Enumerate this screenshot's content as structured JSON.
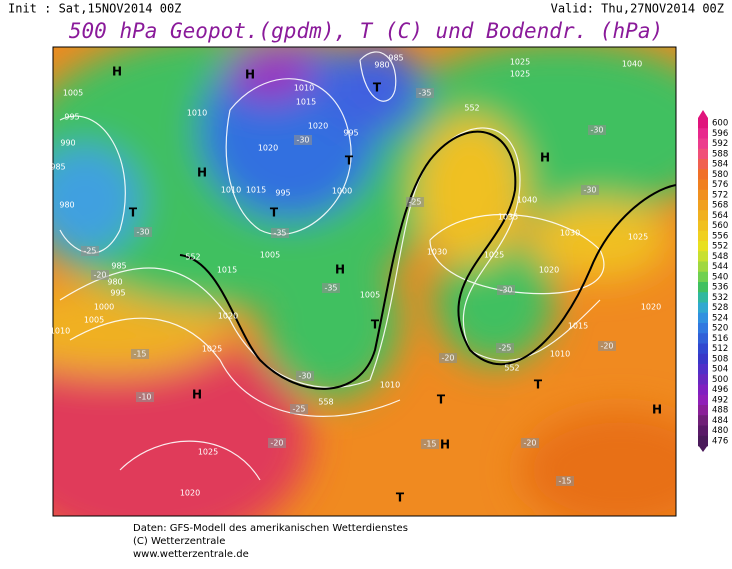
{
  "header": {
    "init": "Init : Sat,15NOV2014 00Z",
    "valid": "Valid: Thu,27NOV2014 00Z",
    "title": "500 hPa Geopot.(gpdm), T (C) und Bodendr. (hPa)"
  },
  "map_labels": [
    "H",
    "1005",
    "995",
    "990",
    "985",
    "980",
    "T",
    "985",
    "980",
    "995",
    "1000",
    "1005",
    "1010",
    "1015",
    "1020",
    "1025",
    "H",
    "1025",
    "1020",
    "H",
    "H",
    "1010",
    "1010",
    "1015",
    "1020",
    "1020",
    "1010",
    "1015",
    "995",
    "T",
    "1005",
    "995",
    "T",
    "1000",
    "H",
    "1005",
    "T",
    "1010",
    "980",
    "985",
    "T",
    "1025",
    "1025",
    "1040",
    "H",
    "1040",
    "1035",
    "1030",
    "1025",
    "1030",
    "1025",
    "1020",
    "1020",
    "1015",
    "1010",
    "T",
    "H",
    "T",
    "H",
    "T",
    "-35",
    "-30",
    "-30",
    "-25",
    "-30",
    "-25",
    "-20",
    "-20",
    "-20",
    "-15",
    "-15",
    "-20",
    "-25",
    "-30",
    "-35",
    "-30",
    "-25",
    "-20",
    "-15",
    "-10",
    "-30",
    "-35",
    "552",
    "552",
    "558",
    "552"
  ],
  "colorbar": [
    600,
    596,
    592,
    588,
    584,
    580,
    576,
    572,
    568,
    564,
    560,
    556,
    552,
    548,
    544,
    540,
    536,
    532,
    528,
    524,
    520,
    516,
    512,
    508,
    504,
    500,
    496,
    492,
    488,
    484,
    480,
    476
  ],
  "footer": {
    "source": "Daten: GFS-Modell des amerikanischen Wetterdienstes",
    "copyright": "(C) Wetterzentrale",
    "url": "www.wetterzentrale.de"
  }
}
